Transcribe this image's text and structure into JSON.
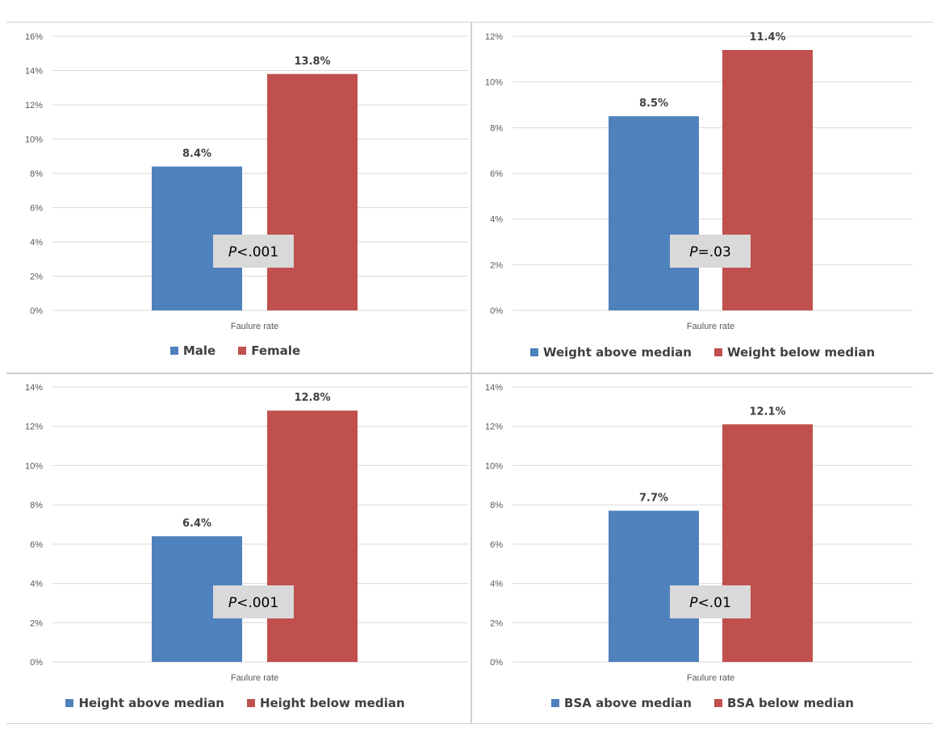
{
  "colors": {
    "series1": "#4f81bd",
    "series2": "#c0504d",
    "grid": "#d9d9d9",
    "pbox": "#d9d9d9"
  },
  "chart_data": [
    {
      "type": "bar",
      "categories": [
        "Faulure rate"
      ],
      "series": [
        {
          "name": "Male",
          "values": [
            8.4
          ],
          "label": "8.4%"
        },
        {
          "name": "Female",
          "values": [
            13.8
          ],
          "label": "13.8%"
        }
      ],
      "ylim": [
        0,
        16
      ],
      "ystep": 2,
      "yticks": [
        "0%",
        "2%",
        "4%",
        "6%",
        "8%",
        "10%",
        "12%",
        "14%",
        "16%"
      ],
      "pvalue": {
        "italic": "P",
        "rest": "<.001"
      },
      "legend_position": "bottom"
    },
    {
      "type": "bar",
      "categories": [
        "Faulure rate"
      ],
      "series": [
        {
          "name": "Weight above median",
          "values": [
            8.5
          ],
          "label": "8.5%"
        },
        {
          "name": "Weight below median",
          "values": [
            11.4
          ],
          "label": "11.4%"
        }
      ],
      "ylim": [
        0,
        12
      ],
      "ystep": 2,
      "yticks": [
        "0%",
        "2%",
        "4%",
        "6%",
        "8%",
        "10%",
        "12%"
      ],
      "pvalue": {
        "italic": "P",
        "rest": "=.03"
      },
      "legend_position": "bottom"
    },
    {
      "type": "bar",
      "categories": [
        "Faulure rate"
      ],
      "series": [
        {
          "name": "Height above median",
          "values": [
            6.4
          ],
          "label": "6.4%"
        },
        {
          "name": "Height below median",
          "values": [
            12.8
          ],
          "label": "12.8%"
        }
      ],
      "ylim": [
        0,
        14
      ],
      "ystep": 2,
      "yticks": [
        "0%",
        "2%",
        "4%",
        "6%",
        "8%",
        "10%",
        "12%",
        "14%"
      ],
      "pvalue": {
        "italic": "P",
        "rest": "<.001"
      },
      "legend_position": "bottom"
    },
    {
      "type": "bar",
      "categories": [
        "Faulure rate"
      ],
      "series": [
        {
          "name": "BSA above median",
          "values": [
            7.7
          ],
          "label": "7.7%"
        },
        {
          "name": "BSA below median",
          "values": [
            12.1
          ],
          "label": "12.1%"
        }
      ],
      "ylim": [
        0,
        14
      ],
      "ystep": 2,
      "yticks": [
        "0%",
        "2%",
        "4%",
        "6%",
        "8%",
        "10%",
        "12%",
        "14%"
      ],
      "pvalue": {
        "italic": "P",
        "rest": "<.01"
      },
      "legend_position": "bottom"
    }
  ]
}
